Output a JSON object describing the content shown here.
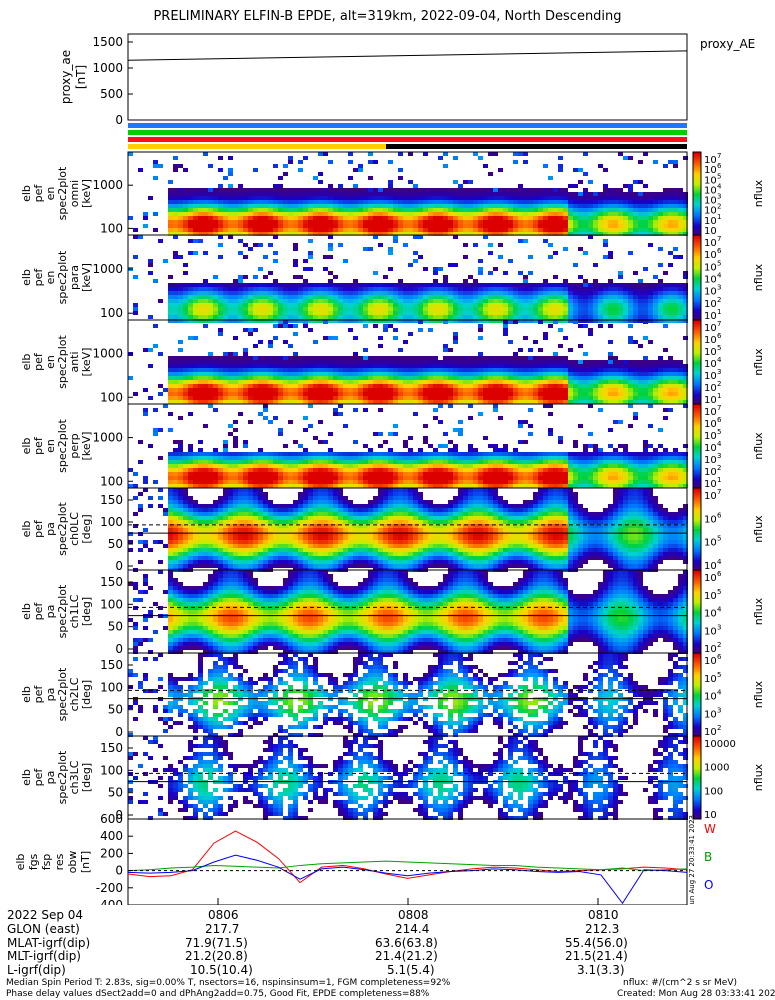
{
  "title": "PRELIMINARY ELFIN-B EPDE, alt=319km, 2022-09-04, North Descending",
  "colors": {
    "w": "#ff0000",
    "b": "#00a000",
    "o": "#0000ff",
    "line": "#000000"
  },
  "panels": [
    {
      "ylabel": [
        "proxy_ae",
        "[nT]"
      ],
      "ticks": [
        "1500",
        "1000",
        "500",
        "0"
      ],
      "rlabel": "proxy_AE",
      "cbar": null
    },
    {
      "ylabel": [
        "elb",
        "pef",
        "en",
        "spec2plot",
        "omni",
        "[keV]"
      ],
      "ticks": [
        "1000",
        "100"
      ],
      "rlabel": "nflux",
      "cbar": [
        "10",
        "10",
        "10",
        "10",
        "10",
        "10",
        "10",
        "10"
      ],
      "cexp": [
        "7",
        "6",
        "5",
        "4",
        "3",
        "2",
        "1",
        ""
      ]
    },
    {
      "ylabel": [
        "elb",
        "pef",
        "en",
        "spec2plot",
        "para",
        "[keV]"
      ],
      "ticks": [
        "1000",
        "100"
      ],
      "rlabel": "nflux",
      "cbar": [
        "10",
        "10",
        "10",
        "10",
        "10",
        "10",
        "10"
      ],
      "cexp": [
        "7",
        "6",
        "5",
        "4",
        "3",
        "2",
        "1"
      ]
    },
    {
      "ylabel": [
        "elb",
        "pef",
        "en",
        "spec2plot",
        "anti",
        "[keV]"
      ],
      "ticks": [
        "1000",
        "100"
      ],
      "rlabel": "nflux",
      "cbar": [
        "10",
        "10",
        "10",
        "10",
        "10",
        "10",
        "10"
      ],
      "cexp": [
        "7",
        "6",
        "5",
        "4",
        "3",
        "2",
        "1"
      ]
    },
    {
      "ylabel": [
        "elb",
        "pef",
        "en",
        "spec2plot",
        "perp",
        "[keV]"
      ],
      "ticks": [
        "1000",
        "100"
      ],
      "rlabel": "nflux",
      "cbar": [
        "10",
        "10",
        "10",
        "10",
        "10",
        "10",
        "10"
      ],
      "cexp": [
        "7",
        "6",
        "5",
        "4",
        "3",
        "2",
        "1"
      ]
    },
    {
      "ylabel": [
        "elb",
        "pef",
        "pa",
        "spec2plot",
        "ch0LC",
        "[deg]"
      ],
      "ticks": [
        "150",
        "100",
        "50",
        "0"
      ],
      "rlabel": "nflux",
      "cbar": [
        "10",
        "10",
        "10",
        "10"
      ],
      "cexp": [
        "7",
        "6",
        "5",
        "4"
      ]
    },
    {
      "ylabel": [
        "elb",
        "pef",
        "pa",
        "spec2plot",
        "ch1LC",
        "[deg]"
      ],
      "ticks": [
        "150",
        "100",
        "50",
        "0"
      ],
      "rlabel": "nflux",
      "cbar": [
        "10",
        "10",
        "10",
        "10",
        "10"
      ],
      "cexp": [
        "6",
        "5",
        "4",
        "3",
        "2"
      ]
    },
    {
      "ylabel": [
        "elb",
        "pef",
        "pa",
        "spec2plot",
        "ch2LC",
        "[deg]"
      ],
      "ticks": [
        "150",
        "100",
        "50",
        "0"
      ],
      "rlabel": "nflux",
      "cbar": [
        "10",
        "10",
        "10",
        "10",
        "10"
      ],
      "cexp": [
        "6",
        "5",
        "4",
        "3",
        "2"
      ]
    },
    {
      "ylabel": [
        "elb",
        "pef",
        "pa",
        "spec2plot",
        "ch3LC",
        "[deg]"
      ],
      "ticks": [
        "150",
        "100",
        "50",
        "0"
      ],
      "rlabel": "nflux",
      "cbar": [
        "10000",
        "1000",
        "100",
        "10"
      ],
      "cexp": [
        "",
        "",
        "",
        ""
      ]
    },
    {
      "ylabel": [
        "elb",
        "fgs",
        "fsp",
        "res",
        "obw",
        "[nT]"
      ],
      "ticks": [
        "600",
        "400",
        "200",
        "0",
        "-200",
        "-400"
      ],
      "rlabel": null,
      "cbar": null
    }
  ],
  "fgs_legend": [
    "W",
    "B",
    "O"
  ],
  "stamp": "Sun Aug 27 20:33:41 2023",
  "time_axis": {
    "row_labels": [
      "2022 Sep 04",
      "GLON (east)",
      "MLAT-igrf(dip)",
      "MLT-igrf(dip)",
      "L-igrf(dip)"
    ],
    "columns": [
      {
        "time": "0806",
        "vals": [
          "217.7",
          "71.9(71.5)",
          "21.2(20.8)",
          "10.5(10.4)"
        ]
      },
      {
        "time": "0808",
        "vals": [
          "214.4",
          "63.6(63.8)",
          "21.4(21.2)",
          "5.1(5.4)"
        ]
      },
      {
        "time": "0810",
        "vals": [
          "212.3",
          "55.4(56.0)",
          "21.5(21.4)",
          "3.1(3.3)"
        ]
      }
    ]
  },
  "footer": {
    "left1": "Median Spin Period T: 2.83s, sig=0.00% T, nsectors=16, nspinsinsum=1, FGM completeness=92%",
    "left2": "Phase delay values dSect2add=0 and dPhAng2add=0.75, Good Fit, EPDE completeness=88%",
    "right1": "nflux: #/(cm^2 s sr MeV)",
    "right2": "Created: Mon Aug 28 03:33:41 2023"
  },
  "chart_data": {
    "type": "heatmap",
    "title": "PRELIMINARY ELFIN-B EPDE, alt=319km, 2022-09-04, North Descending",
    "x_ticks": [
      "0806",
      "0808",
      "0810"
    ],
    "proxy_ae": {
      "ylim": [
        0,
        1500
      ],
      "x": [
        "start",
        "end"
      ],
      "values": [
        1150,
        1330
      ]
    },
    "fgs_res": {
      "ylim": [
        -400,
        600
      ],
      "series": [
        {
          "name": "W",
          "values": [
            -40,
            -70,
            -60,
            10,
            320,
            460,
            330,
            140,
            -140,
            40,
            60,
            20,
            -40,
            -90,
            -50,
            -10,
            20,
            40,
            30,
            10,
            -10,
            0,
            10,
            20,
            40,
            30,
            10
          ]
        },
        {
          "name": "B",
          "values": [
            0,
            10,
            30,
            40,
            60,
            50,
            40,
            30,
            60,
            80,
            90,
            100,
            110,
            100,
            90,
            80,
            70,
            60,
            60,
            40,
            30,
            20,
            10,
            30,
            0,
            10,
            20
          ]
        },
        {
          "name": "O",
          "values": [
            -20,
            -30,
            -20,
            0,
            100,
            180,
            120,
            40,
            -100,
            20,
            40,
            10,
            -30,
            -60,
            -30,
            -10,
            0,
            20,
            10,
            -10,
            -20,
            -10,
            -50,
            -380,
            10,
            0,
            -20
          ]
        }
      ]
    }
  }
}
